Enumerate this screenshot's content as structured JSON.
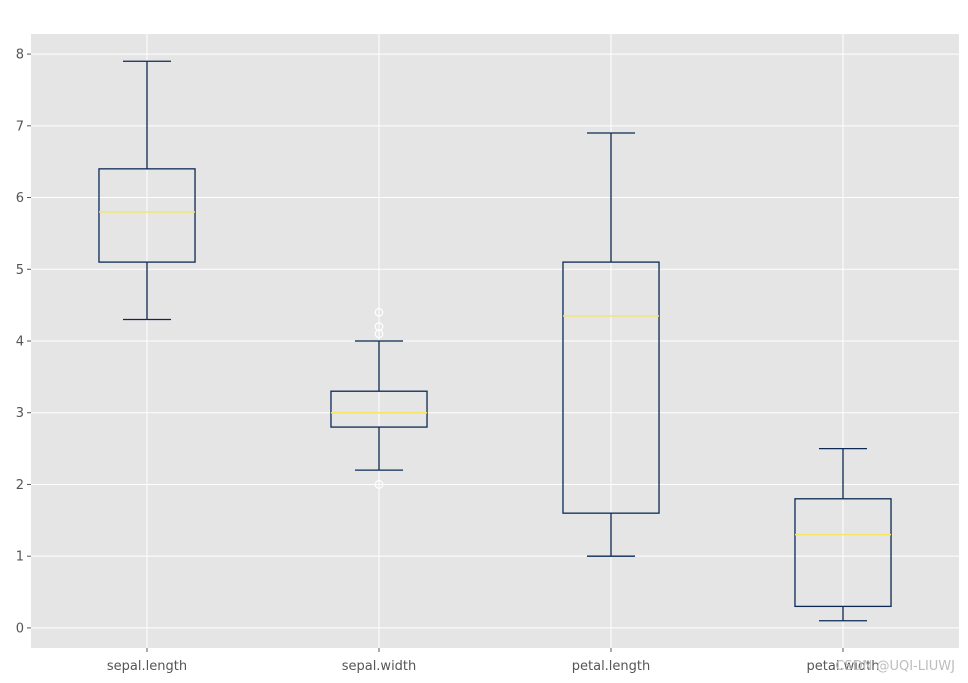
{
  "chart_data": {
    "type": "box",
    "title": "",
    "xlabel": "",
    "ylabel": "",
    "ylim": [
      -0.28,
      8.28
    ],
    "yticks": [
      0,
      1,
      2,
      3,
      4,
      5,
      6,
      7,
      8
    ],
    "grid": true,
    "categories": [
      "sepal.length",
      "sepal.width",
      "petal.length",
      "petal.width"
    ],
    "boxes": [
      {
        "label": "sepal.length",
        "whisker_low": 4.3,
        "q1": 5.1,
        "median": 5.8,
        "q3": 6.4,
        "whisker_high": 7.9,
        "outliers": []
      },
      {
        "label": "sepal.width",
        "whisker_low": 2.2,
        "q1": 2.8,
        "median": 3.0,
        "q3": 3.3,
        "whisker_high": 4.0,
        "outliers": [
          4.4,
          4.2,
          4.1,
          2.0
        ]
      },
      {
        "label": "petal.length",
        "whisker_low": 1.0,
        "q1": 1.6,
        "median": 4.35,
        "q3": 5.1,
        "whisker_high": 6.9,
        "outliers": []
      },
      {
        "label": "petal.width",
        "whisker_low": 0.1,
        "q1": 0.3,
        "median": 1.3,
        "q3": 1.8,
        "whisker_high": 2.5,
        "outliers": []
      }
    ],
    "colors": {
      "plot_background": "#e5e5e5",
      "grid": "#ffffff",
      "box": "#0b2a55",
      "median": "#f5e663",
      "outlier": "#ffffff",
      "tick_label": "#555555"
    },
    "watermark": "CSDN @UQI-LIUWJ"
  }
}
